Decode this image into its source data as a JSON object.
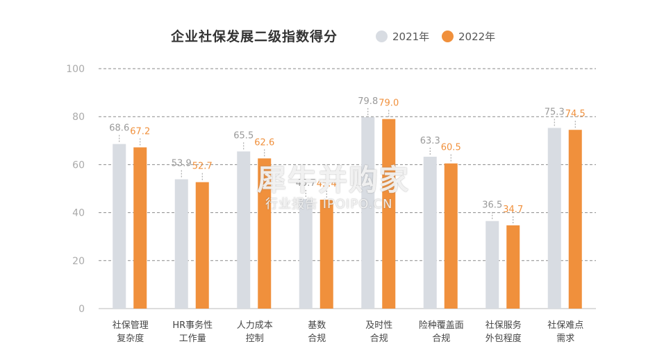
{
  "chart_data": {
    "type": "bar",
    "title": "企业社保发展二级指数得分",
    "categories": [
      [
        "社保管理",
        "复杂度"
      ],
      [
        "HR事务性",
        "工作量"
      ],
      [
        "人力成本",
        "控制"
      ],
      [
        "基数",
        "合规"
      ],
      [
        "及时性",
        "合规"
      ],
      [
        "险种覆盖面",
        "合规"
      ],
      [
        "社保服务",
        "外包程度"
      ],
      [
        "社保难点",
        "需求"
      ]
    ],
    "series": [
      {
        "name": "2021年",
        "color": "#d8dce2",
        "label_color": "#999999",
        "values": [
          68.6,
          53.9,
          65.5,
          45.7,
          79.8,
          63.3,
          36.5,
          75.3
        ]
      },
      {
        "name": "2022年",
        "color": "#f0903c",
        "label_color": "#f0903c",
        "values": [
          67.2,
          52.7,
          62.6,
          45.4,
          79.0,
          60.5,
          34.7,
          74.5
        ]
      }
    ],
    "data_labels": [
      [
        "68.6",
        "53.9",
        "65.5",
        "45.7",
        "79.8",
        "63.3",
        "36.5",
        "75.3"
      ],
      [
        "67.2",
        "52.7",
        "62.6",
        "45.4",
        "79.0",
        "60.5",
        "34.7",
        "74.5"
      ]
    ],
    "ylim": [
      0,
      100
    ],
    "yticks": [
      0,
      20,
      40,
      60,
      80,
      100
    ],
    "ytick_labels": [
      "0",
      "20",
      "40",
      "60",
      "80",
      "100"
    ],
    "grid": true,
    "legend_position": "top"
  },
  "watermark": {
    "main": "犀牛并购家",
    "sub": "行业报告 IPOIPO.CN"
  }
}
